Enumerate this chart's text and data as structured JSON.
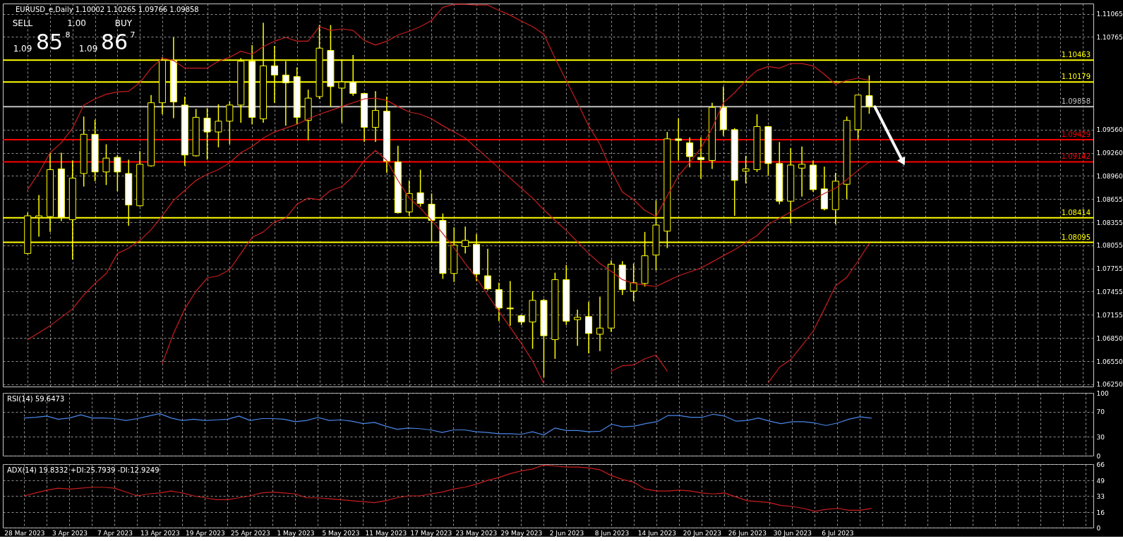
{
  "chart_data": [
    {
      "type": "candlestick",
      "title": "EURUSD_e,Daily 1.10002 1.10265 1.09766 1.09858",
      "categories": [
        null,
        null,
        null,
        null,
        null,
        null,
        null,
        null,
        null,
        null,
        null,
        null,
        null,
        null,
        null,
        null,
        null,
        null,
        null,
        null,
        null,
        null,
        null,
        null,
        null,
        null,
        null,
        null,
        null,
        null,
        null,
        null,
        null,
        null,
        null,
        null,
        null,
        null,
        null,
        null,
        null,
        null,
        null,
        null,
        null,
        null,
        null,
        null,
        null,
        null,
        null,
        null,
        null,
        null,
        null,
        null,
        null,
        null,
        null,
        null,
        null,
        null,
        null,
        null,
        null,
        null,
        null,
        null,
        null,
        null,
        null,
        null,
        null,
        null,
        null,
        null
      ],
      "ohlc": [
        [
          1.0795,
          1.0848,
          1.0794,
          1.0844
        ],
        [
          1.0842,
          1.0871,
          1.0817,
          1.0844
        ],
        [
          1.0843,
          1.0926,
          1.0823,
          1.0904
        ],
        [
          1.0905,
          1.0926,
          1.0837,
          1.0842
        ],
        [
          1.0839,
          1.0916,
          1.0787,
          1.0893
        ],
        [
          1.0899,
          1.0973,
          1.0882,
          1.095
        ],
        [
          1.095,
          1.0969,
          1.0889,
          1.0901
        ],
        [
          1.0901,
          1.0937,
          1.0884,
          1.0919
        ],
        [
          1.092,
          1.0923,
          1.0876,
          1.0901
        ],
        [
          1.0899,
          1.0917,
          1.0831,
          1.0858
        ],
        [
          1.0857,
          1.0928,
          1.0856,
          1.0911
        ],
        [
          1.0909,
          1.1001,
          1.0908,
          1.0991
        ],
        [
          1.0991,
          1.105,
          1.0976,
          1.1046
        ],
        [
          1.1046,
          1.1076,
          1.0971,
          1.0992
        ],
        [
          1.0988,
          1.0999,
          1.0909,
          1.0923
        ],
        [
          1.0922,
          1.0983,
          1.0921,
          1.0972
        ],
        [
          1.0971,
          1.0984,
          1.0917,
          1.0953
        ],
        [
          1.0953,
          1.0989,
          1.0933,
          1.0967
        ],
        [
          1.0967,
          1.0993,
          1.0937,
          1.0988
        ],
        [
          1.0988,
          1.1049,
          1.0965,
          1.1045
        ],
        [
          1.1045,
          1.1066,
          1.0963,
          1.0972
        ],
        [
          1.097,
          1.1095,
          1.0965,
          1.1039
        ],
        [
          1.1039,
          1.1065,
          1.0991,
          1.1027
        ],
        [
          1.1027,
          1.1045,
          1.0961,
          1.1017
        ],
        [
          1.1025,
          1.1037,
          1.0963,
          1.0972
        ],
        [
          1.0968,
          1.1008,
          1.0942,
          1.0997
        ],
        [
          1.0999,
          1.1092,
          1.0996,
          1.1062
        ],
        [
          1.1059,
          1.1092,
          1.0986,
          1.1012
        ],
        [
          1.101,
          1.1047,
          1.0965,
          1.1018
        ],
        [
          1.1018,
          1.1053,
          1.1,
          1.1003
        ],
        [
          1.1003,
          1.1004,
          1.094,
          1.0959
        ],
        [
          1.0959,
          1.1006,
          1.094,
          1.0981
        ],
        [
          1.098,
          1.0999,
          1.09,
          1.0915
        ],
        [
          1.0914,
          1.0935,
          1.0847,
          1.0848
        ],
        [
          1.0849,
          1.089,
          1.0844,
          1.0873
        ],
        [
          1.0874,
          1.0904,
          1.0856,
          1.086
        ],
        [
          1.0859,
          1.0873,
          1.081,
          1.0838
        ],
        [
          1.0838,
          1.0847,
          1.0762,
          1.0769
        ],
        [
          1.0769,
          1.0829,
          1.0758,
          1.0806
        ],
        [
          1.0804,
          1.083,
          1.0795,
          1.0812
        ],
        [
          1.0807,
          1.082,
          1.0759,
          1.0768
        ],
        [
          1.0766,
          1.0801,
          1.0747,
          1.0749
        ],
        [
          1.0748,
          1.0757,
          1.0707,
          1.0724
        ],
        [
          1.0724,
          1.0759,
          1.0701,
          1.0723
        ],
        [
          1.0714,
          1.0715,
          1.0702,
          1.0706
        ],
        [
          1.0706,
          1.0746,
          1.0671,
          1.0734
        ],
        [
          1.0734,
          1.0736,
          1.0634,
          1.0688
        ],
        [
          1.0683,
          1.077,
          1.0658,
          1.0761
        ],
        [
          1.0761,
          1.078,
          1.0702,
          1.0707
        ],
        [
          1.0709,
          1.0722,
          1.0675,
          1.0712
        ],
        [
          1.0713,
          1.0732,
          1.0665,
          1.0691
        ],
        [
          1.069,
          1.0739,
          1.0668,
          1.0698
        ],
        [
          1.0698,
          1.0786,
          1.0693,
          1.0781
        ],
        [
          1.078,
          1.0785,
          1.0741,
          1.0748
        ],
        [
          1.0746,
          1.0782,
          1.0733,
          1.0757
        ],
        [
          1.0756,
          1.0823,
          1.0752,
          1.0792
        ],
        [
          1.0793,
          1.0864,
          1.0773,
          1.0832
        ],
        [
          1.0824,
          1.0953,
          1.0802,
          1.0944
        ],
        [
          1.0944,
          1.0971,
          1.0916,
          1.0942
        ],
        [
          1.0939,
          1.0946,
          1.0907,
          1.0921
        ],
        [
          1.092,
          1.0946,
          1.0892,
          1.0917
        ],
        [
          1.0916,
          1.0991,
          1.0905,
          1.0985
        ],
        [
          1.0985,
          1.1012,
          1.0948,
          1.0956
        ],
        [
          1.0956,
          1.0958,
          1.0844,
          1.089
        ],
        [
          1.0902,
          1.0922,
          1.0886,
          1.0905
        ],
        [
          1.0904,
          1.0976,
          1.0901,
          1.096
        ],
        [
          1.096,
          1.0961,
          1.0896,
          1.0912
        ],
        [
          1.0912,
          1.094,
          1.0859,
          1.0863
        ],
        [
          1.0863,
          1.0932,
          1.0834,
          1.091
        ],
        [
          1.0906,
          1.0934,
          1.0869,
          1.0911
        ],
        [
          1.091,
          1.0916,
          1.0875,
          1.0878
        ],
        [
          1.0879,
          1.0908,
          1.0851,
          1.0853
        ],
        [
          1.0852,
          1.09,
          1.0833,
          1.0889
        ],
        [
          1.0885,
          1.0973,
          1.0866,
          1.0968
        ],
        [
          1.0956,
          1.1001,
          1.0943,
          1.1001
        ],
        [
          1.10002,
          1.10265,
          1.09766,
          1.09858
        ]
      ],
      "color": "#ffff00",
      "colors": [
        "#000000",
        "#000000",
        "#000000",
        "#ffffff",
        "#000000",
        "#000000",
        "#ffffff",
        "#000000",
        "#ffffff",
        "#ffffff",
        "#000000",
        "#000000",
        "#000000",
        "#ffffff",
        "#ffffff",
        "#000000",
        "#ffffff",
        "#000000",
        "#000000",
        "#000000",
        "#ffffff",
        "#000000",
        "#ffffff",
        "#ffffff",
        "#ffffff",
        "#000000",
        "#000000",
        "#ffffff",
        "#000000",
        "#ffffff",
        "#ffffff",
        "#000000",
        "#ffffff",
        "#ffffff",
        "#000000",
        "#ffffff",
        "#ffffff",
        "#ffffff",
        "#000000",
        "#000000",
        "#ffffff",
        "#ffffff",
        "#ffffff",
        "#ffffff",
        "#ffffff",
        "#000000",
        "#ffffff",
        "#000000",
        "#ffffff",
        "#000000",
        "#ffffff",
        "#000000",
        "#000000",
        "#ffffff",
        "#000000",
        "#000000",
        "#000000",
        "#000000",
        "#ffffff",
        "#ffffff",
        "#ffffff",
        "#000000",
        "#ffffff",
        "#ffffff",
        "#000000",
        "#000000",
        "#ffffff",
        "#ffffff",
        "#000000",
        "#000000",
        "#ffffff",
        "#ffffff",
        "#000000",
        "#000000",
        "#000000",
        "#ffffff"
      ],
      "series": [
        {
          "type": "line",
          "color": "#c81e1e",
          "values": [
            1.0878,
            1.09,
            1.0926,
            1.0939,
            1.0958,
            1.0988,
            1.0996,
            1.1002,
            1.1005,
            1.1006,
            1.1017,
            1.1036,
            1.1049,
            1.1046,
            1.1036,
            1.1036,
            1.1036,
            1.1045,
            1.105,
            1.1058,
            1.1054,
            1.1064,
            1.1071,
            1.1076,
            1.1071,
            1.1071,
            1.109,
            1.1085,
            1.1087,
            1.1085,
            1.1072,
            1.1066,
            1.1071,
            1.1079,
            1.1084,
            1.109,
            1.1098,
            1.1115,
            1.1119,
            1.1119,
            1.1118,
            1.1118,
            1.1111,
            1.1105,
            1.1097,
            1.109,
            1.108,
            1.1049,
            1.102,
            1.0991,
            1.0961,
            1.0937,
            1.0903,
            1.0875,
            1.0865,
            1.0851,
            1.0843,
            1.087,
            1.0896,
            1.0913,
            1.0932,
            1.0958,
            1.0991,
            1.1004,
            1.102,
            1.1033,
            1.1038,
            1.1036,
            1.1042,
            1.1042,
            1.1039,
            1.1028,
            1.1015,
            1.102,
            1.1023,
            1.102
          ]
        },
        {
          "type": "line",
          "color": "#c81e1e",
          "values": [
            1.0683,
            1.0692,
            1.0701,
            1.0712,
            1.0723,
            1.0741,
            1.0756,
            1.0769,
            1.0795,
            1.0802,
            1.0812,
            1.0826,
            1.0844,
            1.0864,
            1.0877,
            1.089,
            1.0898,
            1.0904,
            1.0913,
            1.0926,
            1.0934,
            1.0945,
            1.0953,
            1.0958,
            1.0963,
            1.097,
            1.0976,
            1.0981,
            1.0986,
            1.0991,
            1.0996,
            1.0997,
            1.0994,
            1.0986,
            1.0979,
            1.0976,
            1.097,
            1.0961,
            1.0953,
            1.0945,
            1.0932,
            1.0919,
            1.0906,
            1.0893,
            1.088,
            1.0867,
            1.0852,
            1.0838,
            1.0825,
            1.081,
            1.0795,
            1.0782,
            1.0772,
            1.0761,
            1.0756,
            1.0754,
            1.0752,
            1.0759,
            1.0766,
            1.0771,
            1.0776,
            1.0784,
            1.0792,
            1.08,
            1.0809,
            1.0818,
            1.0833,
            1.0841,
            1.0849,
            1.0857,
            1.0865,
            1.0873,
            1.088,
            1.0891,
            1.0903,
            1.0914
          ]
        },
        {
          "type": "line",
          "color": "#c81e1e",
          "values": [
            null,
            null,
            null,
            null,
            null,
            null,
            null,
            null,
            null,
            null,
            null,
            null,
            1.0652,
            1.0691,
            1.0723,
            1.0746,
            1.0763,
            1.0766,
            1.0774,
            1.0795,
            1.0816,
            1.0823,
            1.0836,
            1.0841,
            1.0859,
            1.0867,
            1.0865,
            1.0877,
            1.0882,
            1.0895,
            1.0916,
            1.0929,
            1.0916,
            1.089,
            1.0867,
            1.0854,
            1.0838,
            1.0821,
            1.0802,
            1.0782,
            1.0763,
            1.0741,
            1.072,
            1.0699,
            1.0678,
            1.0655,
            1.0626,
            null,
            null,
            null,
            null,
            null,
            1.0642,
            1.0649,
            1.065,
            1.0658,
            1.0663,
            1.0642,
            null,
            null,
            null,
            null,
            null,
            null,
            null,
            null,
            1.0627,
            1.0647,
            1.0657,
            1.0675,
            1.0694,
            1.0723,
            1.0753,
            1.0764,
            1.0785,
            1.0808
          ]
        }
      ],
      "ylim": [
        1.0622,
        1.112
      ],
      "yticks": [
        1.11065,
        1.10765,
        {
          "value": 1.0956,
          "label": "1.09560"
        },
        {
          "value": 1.0926,
          "label": "1.09260"
        },
        {
          "value": 1.0896,
          "label": "1.08960"
        },
        1.08655,
        1.08355,
        1.08055,
        1.07755,
        1.07455,
        1.07155,
        {
          "value": 1.0685,
          "label": "1.06850"
        },
        {
          "value": 1.0655,
          "label": "1.06550"
        },
        {
          "value": 1.0625,
          "label": "1.06250"
        }
      ],
      "grid": true,
      "tick_labels": "y",
      "ref_lines": [
        {
          "axis": "y",
          "value": 1.10463,
          "label": "1.10463",
          "color": "#ffff00"
        },
        {
          "axis": "y",
          "value": 1.10179,
          "label": "1.10179",
          "color": "#ffff00"
        },
        {
          "axis": "y",
          "value": 1.09858,
          "label": "1.09858",
          "color": "#c0c0c0"
        },
        {
          "axis": "y",
          "value": 1.09429,
          "label": "1.09429",
          "color": "#ff0000"
        },
        {
          "axis": "y",
          "value": 1.09142,
          "label": "1.09142",
          "color": "#ff0000"
        },
        {
          "axis": "y",
          "value": 1.08414,
          "label": "1.08414",
          "color": "#ffff00"
        },
        {
          "axis": "y",
          "value": 1.08095,
          "label": "1.08095",
          "color": "#ffff00"
        }
      ],
      "annotations": [
        "SELL",
        "1.00",
        "BUY",
        "1.09",
        "85",
        "8",
        "1.09",
        "86",
        "7"
      ]
    },
    {
      "type": "line",
      "title": "RSI(14) 59.6473",
      "categories": [
        null,
        null,
        null,
        null,
        null,
        null,
        null,
        null,
        null,
        null,
        null,
        null,
        null,
        null,
        null,
        null,
        null,
        null,
        null,
        null,
        null,
        null,
        null,
        null,
        null,
        null,
        null,
        null,
        null,
        null,
        null,
        null,
        null,
        null,
        null,
        null,
        null,
        null,
        null,
        null,
        null,
        null,
        null,
        null,
        null,
        null,
        null,
        null,
        null,
        null,
        null,
        null,
        null,
        null,
        null,
        null,
        null,
        null,
        null,
        null,
        null,
        null,
        null,
        null,
        null,
        null,
        null,
        null,
        null,
        null,
        null,
        null,
        null,
        null,
        null,
        null
      ],
      "series": [
        {
          "color": "#4a86e8",
          "values": [
            60,
            61,
            63,
            58,
            60,
            65,
            60,
            60,
            59,
            56,
            59,
            63,
            67,
            60,
            56,
            58,
            56,
            57,
            58,
            63,
            56,
            59,
            59,
            58,
            54,
            56,
            61,
            56,
            57,
            55,
            51,
            53,
            47,
            42,
            44,
            43,
            41,
            37,
            41,
            41,
            38,
            37,
            35,
            35,
            34,
            38,
            33,
            44,
            40,
            40,
            38,
            39,
            50,
            46,
            47,
            51,
            54,
            64,
            64,
            61,
            61,
            66,
            63,
            55,
            56,
            60,
            55,
            51,
            54,
            54,
            52,
            48,
            52,
            58,
            62,
            59.6473
          ]
        }
      ],
      "ylim": [
        0,
        100
      ],
      "yticks": [
        100,
        70,
        30,
        0
      ],
      "grid": true,
      "tick_labels": "y"
    },
    {
      "type": "line",
      "title": "ADX(14) 19.8332 +DI:25.7939 -DI:12.9249",
      "categories": [
        "28 Mar 2023",
        null,
        null,
        null,
        "3 Apr 2023",
        null,
        null,
        null,
        "7 Apr 2023",
        null,
        null,
        null,
        "13 Apr 2023",
        null,
        null,
        null,
        "19 Apr 2023",
        null,
        null,
        null,
        "25 Apr 2023",
        null,
        null,
        null,
        "1 May 2023",
        null,
        null,
        null,
        "5 May 2023",
        null,
        null,
        null,
        "11 May 2023",
        null,
        null,
        null,
        "17 May 2023",
        null,
        null,
        null,
        "23 May 2023",
        null,
        null,
        null,
        "29 May 2023",
        null,
        null,
        null,
        "2 Jun 2023",
        null,
        null,
        null,
        "8 Jun 2023",
        null,
        null,
        null,
        "14 Jun 2023",
        null,
        null,
        null,
        "20 Jun 2023",
        null,
        null,
        null,
        "26 Jun 2023",
        null,
        null,
        null,
        "30 Jun 2023",
        null,
        null,
        null,
        "6 Jul 2023",
        null,
        null,
        null
      ],
      "series": [
        {
          "color": "#c81e1e",
          "values": [
            33,
            36,
            39,
            41,
            40,
            41,
            42,
            42,
            41,
            37,
            33,
            35,
            36,
            38,
            36,
            33,
            31,
            29,
            29,
            31,
            33,
            36,
            37,
            36,
            35,
            31,
            31,
            30,
            29,
            28,
            27,
            26,
            28,
            31,
            33,
            33,
            35,
            37,
            40,
            42,
            45,
            49,
            52,
            56,
            59,
            61,
            65,
            64,
            63,
            63,
            62,
            60,
            54,
            50,
            47,
            40,
            38,
            38,
            39,
            38,
            36,
            35,
            36,
            32,
            28,
            27,
            26,
            23,
            22,
            20,
            17,
            19,
            20,
            18,
            18,
            19.8332
          ]
        }
      ],
      "ylim": [
        0,
        66
      ],
      "yticks": [
        66,
        49,
        33,
        16,
        0
      ],
      "grid": true
    }
  ]
}
